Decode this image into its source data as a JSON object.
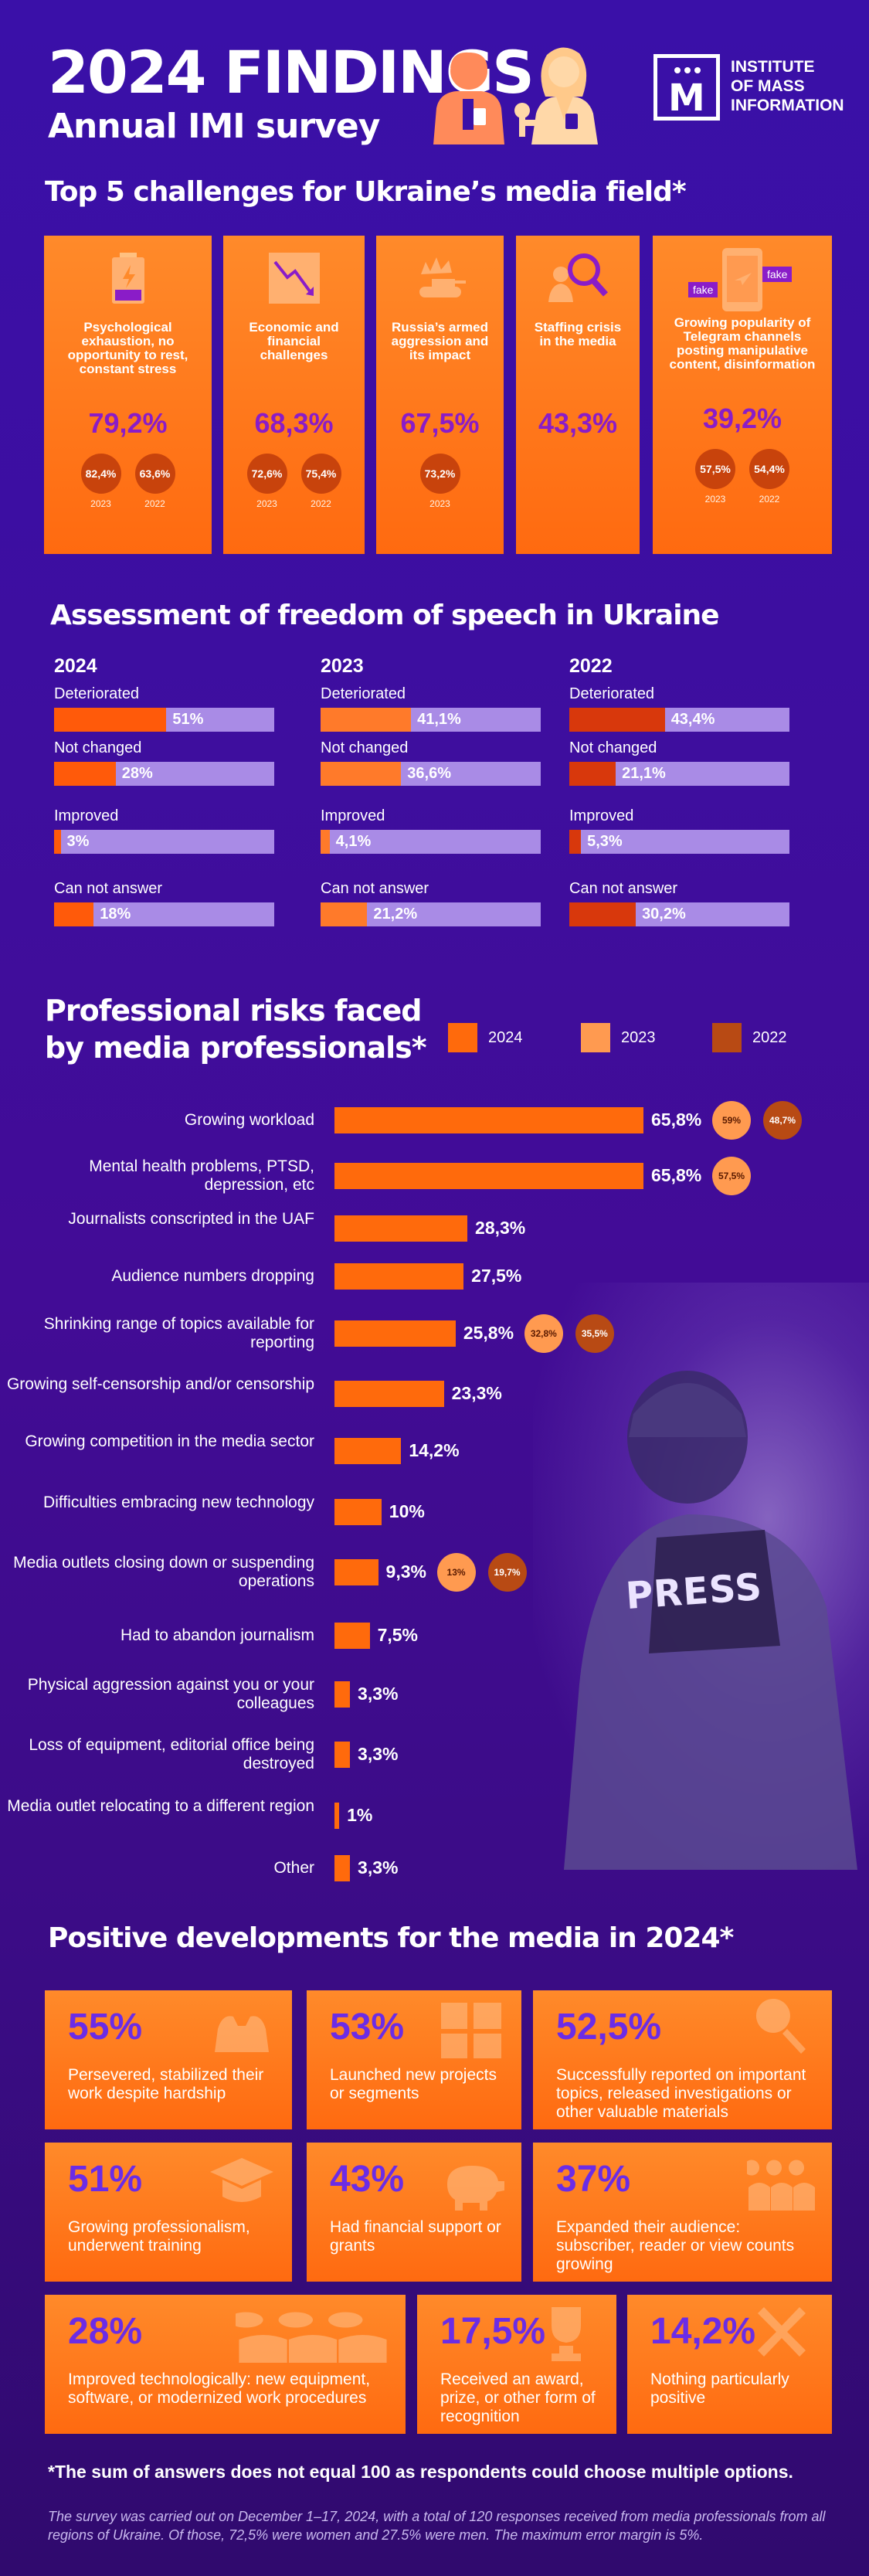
{
  "header": {
    "title": "2024 FINDINGS",
    "subtitle": "Annual IMI survey",
    "logo_line1": "INSTITUTE",
    "logo_line2": "OF MASS",
    "logo_line3": "INFORMATION"
  },
  "challenges": {
    "title": "Top 5 challenges for Ukraine’s media field*",
    "cards": [
      {
        "text": "Psychological exhaustion, no opportunity to rest, constant stress",
        "value": "79,2%",
        "h1": "82,4%",
        "y1": "2023",
        "h2": "63,6%",
        "y2": "2022",
        "icon": "battery-icon"
      },
      {
        "text": "Economic and financial challenges",
        "value": "68,3%",
        "h1": "72,6%",
        "y1": "2023",
        "h2": "75,4%",
        "y2": "2022",
        "icon": "trend-down-icon"
      },
      {
        "text": "Russia’s armed aggression and its impact",
        "value": "67,5%",
        "h1": "73,2%",
        "y1": "2023",
        "icon": "tank-icon"
      },
      {
        "text": "Staffing crisis in the media",
        "value": "43,3%",
        "icon": "search-person-icon"
      },
      {
        "text": "Growing popularity of Telegram channels posting manipulative content, disinformation",
        "value": "39,2%",
        "h1": "57,5%",
        "y1": "2023",
        "h2": "54,4%",
        "y2": "2022",
        "icon": "phone-fake-icon",
        "fake1": "fake",
        "fake2": "fake"
      }
    ]
  },
  "freedom": {
    "title": "Assessment of freedom of speech in Ukraine",
    "columns": [
      {
        "year": "2024",
        "color": "#ff5a0a",
        "items": [
          {
            "label": "Deteriorated",
            "value": "51%",
            "pct": 51
          },
          {
            "label": "Not changed",
            "value": "28%",
            "pct": 28
          },
          {
            "label": "Improved",
            "value": "3%",
            "pct": 3
          },
          {
            "label": "Can not answer",
            "value": "18%",
            "pct": 18
          }
        ]
      },
      {
        "year": "2023",
        "color": "#ff7a2a",
        "items": [
          {
            "label": "Deteriorated",
            "value": "41,1%",
            "pct": 41.1
          },
          {
            "label": "Not changed",
            "value": "36,6%",
            "pct": 36.6
          },
          {
            "label": "Improved",
            "value": "4,1%",
            "pct": 4.1
          },
          {
            "label": "Can not answer",
            "value": "21,2%",
            "pct": 21.2
          }
        ]
      },
      {
        "year": "2022",
        "color": "#d8380c",
        "items": [
          {
            "label": "Deteriorated",
            "value": "43,4%",
            "pct": 43.4
          },
          {
            "label": "Not changed",
            "value": "21,1%",
            "pct": 21.1
          },
          {
            "label": "Improved",
            "value": "5,3%",
            "pct": 5.3
          },
          {
            "label": "Can not answer",
            "value": "30,2%",
            "pct": 30.2
          }
        ]
      }
    ]
  },
  "risks": {
    "title_line1": "Professional risks faced",
    "title_line2": "by media professionals*",
    "legend": [
      {
        "label": "2024",
        "color": "#ff6a0c"
      },
      {
        "label": "2023",
        "color": "#ff9a50"
      },
      {
        "label": "2022",
        "color": "#b84a14"
      }
    ]
  },
  "chart_data": {
    "type": "bar",
    "orientation": "horizontal",
    "categories": [
      "Growing workload",
      "Mental health problems, PTSD, depression, etc",
      "Journalists conscripted in the UAF",
      "Audience numbers dropping",
      "Shrinking range of topics available for reporting",
      "Growing self-censorship and/or censorship",
      "Growing competition in the media sector",
      "Difficulties embracing new technology",
      "Media outlets closing down or suspending operations",
      "Had to abandon journalism",
      "Physical aggression against you or your colleagues",
      "Loss of equipment, editorial office being destroyed",
      "Media outlet relocating to a different region",
      "Other"
    ],
    "series": [
      {
        "name": "2024",
        "values": [
          65.8,
          65.8,
          28.3,
          27.5,
          25.8,
          23.3,
          14.2,
          10,
          9.3,
          7.5,
          3.3,
          3.3,
          1,
          3.3
        ],
        "labels": [
          "65,8%",
          "65,8%",
          "28,3%",
          "27,5%",
          "25,8%",
          "23,3%",
          "14,2%",
          "10%",
          "9,3%",
          "7,5%",
          "3,3%",
          "3,3%",
          "1%",
          "3,3%"
        ]
      },
      {
        "name": "2023",
        "values": [
          59,
          57.5,
          null,
          null,
          32.8,
          null,
          null,
          null,
          13,
          null,
          null,
          null,
          null,
          null
        ],
        "labels": [
          "59%",
          "57,5%",
          "",
          "",
          "32,8%",
          "",
          "",
          "",
          "13%",
          "",
          "",
          "",
          "",
          ""
        ]
      },
      {
        "name": "2022",
        "values": [
          48.7,
          null,
          null,
          null,
          35.5,
          null,
          null,
          null,
          19.7,
          null,
          null,
          null,
          null,
          null
        ],
        "labels": [
          "48,7%",
          "",
          "",
          "",
          "35,5%",
          "",
          "",
          "",
          "19,7%",
          "",
          "",
          "",
          "",
          ""
        ]
      }
    ]
  },
  "photo_text": "PRESS",
  "positive": {
    "title": "Positive developments for the media in 2024*",
    "items": [
      {
        "value": "55%",
        "text": "Persevered, stabilized their work despite hardship",
        "icon": "strong-arm-icon"
      },
      {
        "value": "53%",
        "text": "Launched new projects or segments",
        "icon": "grid-icon"
      },
      {
        "value": "52,5%",
        "text": "Successfully reported on important topics, released investigations or other valuable materials",
        "icon": "magnifier-icon"
      },
      {
        "value": "51%",
        "text": "Growing professionalism, underwent training",
        "icon": "graduation-cap-icon"
      },
      {
        "value": "43%",
        "text": "Had financial support or grants",
        "icon": "piggy-bank-icon"
      },
      {
        "value": "37%",
        "text": "Expanded their audience: subscriber, reader or view counts growing",
        "icon": "people-icon"
      },
      {
        "value": "28%",
        "text": "Improved technologically: new equipment, software, or modernized work procedures",
        "icon": "workers-icon"
      },
      {
        "value": "17,5%",
        "text": "Received an award, prize, or other form of recognition",
        "icon": "trophy-icon"
      },
      {
        "value": "14,2%",
        "text": "Nothing particularly positive",
        "icon": "cross-icon"
      }
    ]
  },
  "footnote": "*The sum of answers does not equal 100 as respondents could choose multiple options.",
  "survey_note": "The survey was carried out on December 1–17, 2024, with a total of 120 responses received from media professionals from all regions of Ukraine. Of those, 72,5% were women and 27.5% were men. The maximum error margin is 5%."
}
